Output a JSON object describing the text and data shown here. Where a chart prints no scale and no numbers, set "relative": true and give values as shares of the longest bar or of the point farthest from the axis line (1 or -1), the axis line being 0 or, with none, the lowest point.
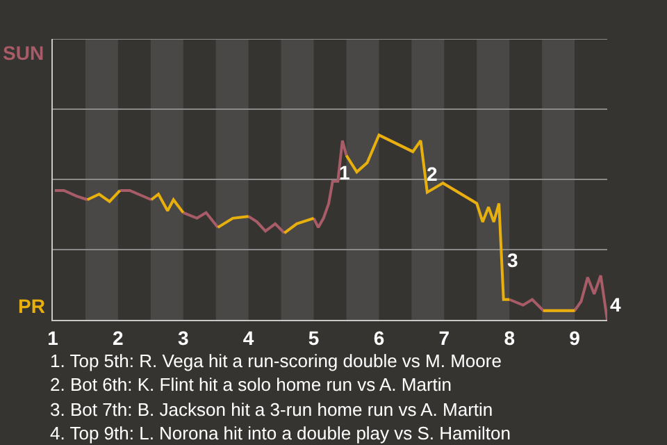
{
  "chart_data": {
    "type": "line",
    "relative": true,
    "x": [
      1.03,
      1.17,
      1.36,
      1.53,
      1.71,
      1.87,
      2.03,
      2.18,
      2.51,
      2.62,
      2.76,
      2.85,
      3.0,
      3.21,
      3.35,
      3.53,
      3.76,
      4.0,
      4.13,
      4.26,
      4.41,
      4.55,
      4.74,
      5.0,
      5.07,
      5.15,
      5.23,
      5.29,
      5.37,
      5.44,
      5.5,
      5.66,
      5.82,
      6.0,
      6.52,
      6.64,
      6.74,
      6.98,
      7.5,
      7.59,
      7.68,
      7.76,
      7.84,
      7.91,
      8.0,
      8.21,
      8.35,
      8.52,
      9.0,
      9.1,
      9.2,
      9.3,
      9.4,
      9.5
    ],
    "series": [
      {
        "name": "SUN",
        "color": "#a85c68",
        "values": [
          0.7,
          0.7,
          0.67,
          0.65,
          null,
          null,
          0.7,
          0.7,
          0.65,
          null,
          null,
          null,
          0.58,
          0.55,
          0.58,
          0.5,
          null,
          0.56,
          0.53,
          0.48,
          0.52,
          0.47,
          null,
          0.55,
          0.5,
          0.55,
          0.63,
          0.75,
          0.75,
          0.97,
          0.89,
          null,
          null,
          1,
          0.91,
          null,
          null,
          0.74,
          0.63,
          null,
          null,
          null,
          null,
          null,
          0.11,
          0.08,
          0.11,
          0.05,
          0.05,
          0.1,
          0.23,
          0.14,
          0.24,
          0
        ]
      },
      {
        "name": "PR",
        "color": "#e8b00c",
        "values": [
          null,
          null,
          null,
          0.65,
          0.68,
          0.64,
          0.7,
          null,
          0.65,
          0.68,
          0.59,
          0.65,
          0.58,
          null,
          null,
          0.5,
          0.55,
          0.56,
          null,
          null,
          null,
          0.47,
          0.52,
          0.55,
          null,
          null,
          null,
          null,
          null,
          null,
          0.89,
          0.8,
          0.85,
          1,
          0.91,
          0.97,
          0.69,
          0.74,
          0.63,
          0.53,
          0.61,
          0.53,
          0.63,
          0.11,
          0.11,
          null,
          null,
          0.05,
          0.05,
          null,
          null,
          null,
          null,
          null
        ]
      }
    ],
    "xlim": [
      1,
      9.5
    ],
    "xticks": [
      1,
      2,
      3,
      4,
      5,
      6,
      7,
      8,
      9
    ],
    "ref_lines": [
      {
        "axis": "y",
        "value": 0.38,
        "color": "#8a8a8a"
      },
      {
        "axis": "y",
        "value": 0.76,
        "color": "#8a8a8a"
      },
      {
        "axis": "y",
        "value": 1.14,
        "color": "#8a8a8a"
      },
      {
        "axis": "y",
        "value": 1.52,
        "color": "#8a8a8a"
      }
    ],
    "legend": false,
    "marker": "none",
    "line_style": "solid",
    "bands": [
      {
        "axis": "x",
        "from": 1.5,
        "to": 2,
        "color": "#4a4846"
      },
      {
        "axis": "x",
        "from": 2.5,
        "to": 3,
        "color": "#4a4846"
      },
      {
        "axis": "x",
        "from": 3.5,
        "to": 4,
        "color": "#4a4846"
      },
      {
        "axis": "x",
        "from": 4.5,
        "to": 5,
        "color": "#4a4846"
      },
      {
        "axis": "x",
        "from": 5.5,
        "to": 6,
        "color": "#4a4846"
      },
      {
        "axis": "x",
        "from": 6.5,
        "to": 7,
        "color": "#4a4846"
      },
      {
        "axis": "x",
        "from": 7.5,
        "to": 8,
        "color": "#4a4846"
      },
      {
        "axis": "x",
        "from": 8.5,
        "to": 9,
        "color": "#4a4846"
      }
    ],
    "annotations": [
      {
        "text": "1",
        "x": 5.47,
        "y": 0.8
      },
      {
        "text": "2",
        "x": 6.82,
        "y": 0.79
      },
      {
        "text": "3",
        "x": 8.06,
        "y": 0.32
      },
      {
        "text": "4",
        "x": 9.5,
        "y": 0.08
      },
      "1. Top 5th: R. Vega hit a run-scoring double vs M. Moore",
      "2. Bot 6th: K. Flint hit a solo home run vs A. Martin",
      "3. Bot 7th: B. Jackson hit a 3-run home run vs A. Martin",
      "4. Top 9th: L. Norona hit into a double play vs S. Hamilton"
    ]
  }
}
